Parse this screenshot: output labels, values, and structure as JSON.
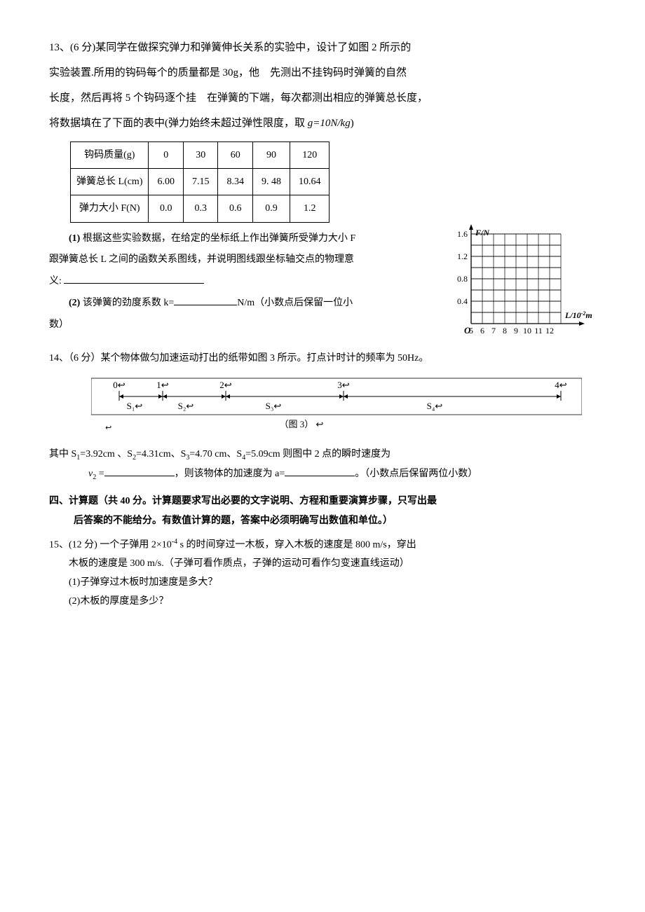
{
  "q13": {
    "intro_l1": "13、(6 分)某同学在做探究弹力和弹簧伸长关系的实验中，设计了如图 2 所示的",
    "intro_l2": "实验装置.所用的钩码每个的质量都是 30g，他 先测出不挂钩码时弹簧的自然",
    "intro_l3": "长度，然后再将 5 个钩码逐个挂 在弹簧的下端，每次都测出相应的弹簧总长度，",
    "intro_l4": "将数据填在了下面的表中(弹力始终未超过弹性限度，取 ",
    "intro_g": "g=10N/kg",
    "intro_end": ")",
    "table_rows": [
      [
        "钩码质量(g)",
        "0",
        "30",
        "60",
        "90",
        "120"
      ],
      [
        "弹簧总长 L(cm)",
        "6.00",
        "7.15",
        "8.34",
        "9. 48",
        "10.64"
      ],
      [
        "弹力大小 F(N)",
        "0.0",
        "0.3",
        "0.6",
        "0.9",
        "1.2"
      ]
    ],
    "part1_a": "(1)",
    "part1_b": " 根据这些实验数据，在给定的坐标纸上作出弹簧所受弹力大小 F",
    "part1_c": "跟弹簧总长 L 之间的函数关系图线，并说明图线跟坐标轴交点的物理意",
    "part1_d": "义: ",
    "part2_a": "(2)",
    "part2_b": " 该弹簧的劲度系数 k=",
    "part2_c": "N/m（小数点后保留一位小",
    "part2_d": "数）"
  },
  "chart": {
    "y_label": "F/N",
    "x_label": "L/10",
    "x_label_sup": "-2",
    "x_label_unit": "m",
    "y_ticks": [
      "1.6",
      "1.2",
      "0.8",
      "0.4"
    ],
    "origin": "O",
    "x_ticks": [
      "5",
      "6",
      "7",
      "8",
      "9",
      "10",
      "11",
      "12"
    ],
    "grid_cols": 8,
    "grid_rows": 8,
    "cell": 16,
    "line_color": "#000000",
    "bg_color": "#ffffff"
  },
  "q14": {
    "line1": "14、（6 分）某个物体做匀加速运动打出的纸带如图 3 所示。打点计时计的频率为 50Hz。",
    "tape_points": [
      "0",
      "1",
      "2",
      "3",
      "4"
    ],
    "tape_segments": [
      "S₁",
      "S₂",
      "S₃",
      "S₄"
    ],
    "tape_caption": "（图 3）",
    "tape_point_positions": [
      40,
      102,
      192,
      360,
      670
    ],
    "tape_pos_s1": 62,
    "tape_pos_s2": 135,
    "tape_pos_s3": 260,
    "tape_pos_s4": 490,
    "line_after_a": "其中 S",
    "s1": "1",
    "val1": "=3.92cm  、S",
    "s2": "2",
    "val2": "=4.31cm、S",
    "s3": "3",
    "val3": "=4.70 cm、S",
    "s4": "4",
    "val4": "=5.09cm 则图中 2 点的瞬时速度为",
    "v2_pre": "v",
    "v2_sub": "2",
    "v2_post": " =",
    "v2_after": "，则该物体的加速度为 a=",
    "v2_tail": "。（小数点后保留两位小数）"
  },
  "sec4": {
    "heading_l1": "四、计算题（共 40 分。计算题要求写出必要的文字说明、方程和重要演算步骤，只写出最",
    "heading_l2": "后答案的不能给分。有数值计算的题，答案中必须明确写出数值和单位。）"
  },
  "q15": {
    "l1_a": "15、(12 分)  一个子弹用 2×10",
    "l1_sup": "-4",
    "l1_b": " s 的时间穿过一木板，穿入木板的速度是 800 m/s，穿出",
    "l2": "木板的速度是 300 m/s.（子弹可看作质点，子弹的运动可看作匀变速直线运动）",
    "sub1": "(1)子弹穿过木板时加速度是多大？",
    "sub2": "(2)木板的厚度是多少？"
  }
}
